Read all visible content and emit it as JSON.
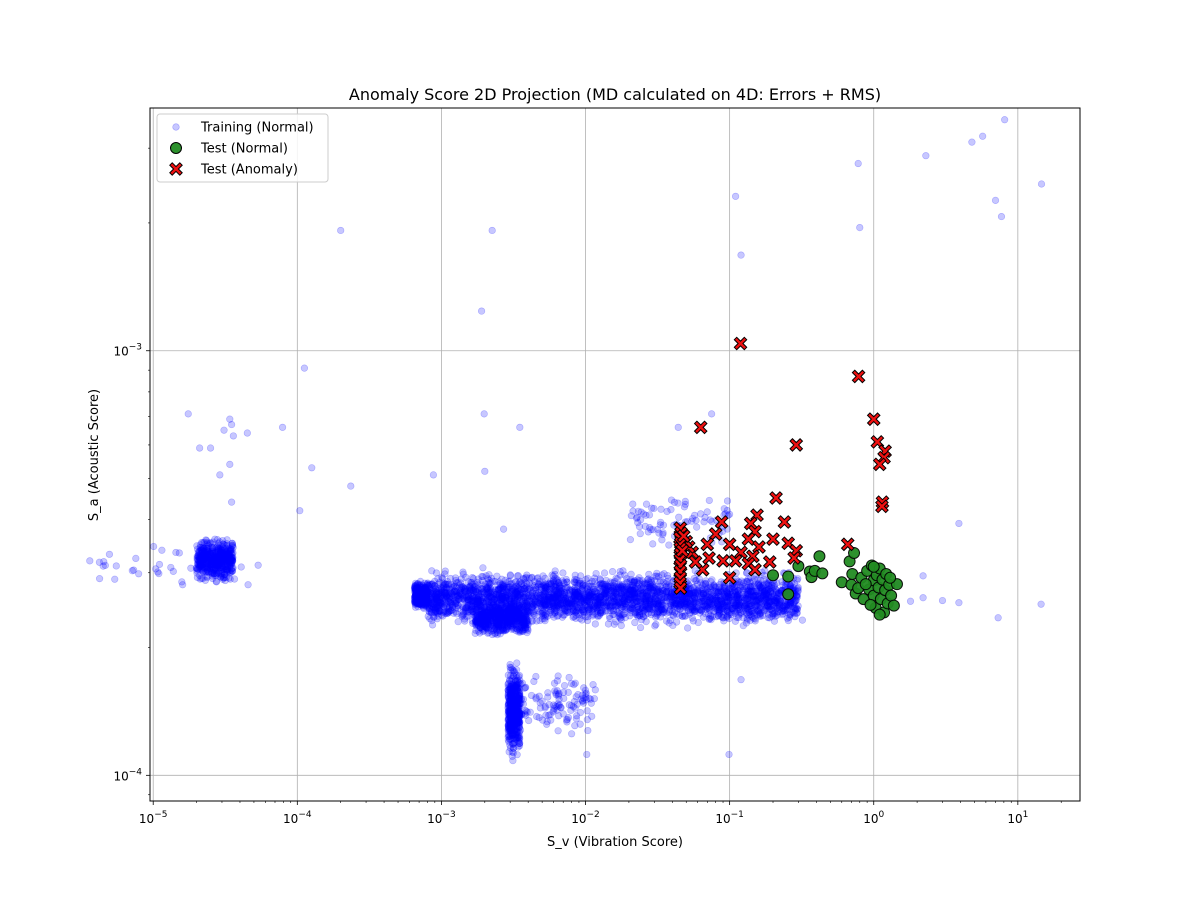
{
  "chart_data": {
    "type": "scatter",
    "title": "Anomaly Score 2D Projection (MD calculated on 4D: Errors + RMS)",
    "xlabel": "S_v (Vibration Score)",
    "ylabel": "S_a (Acoustic Score)",
    "xscale": "log",
    "yscale": "log",
    "xlim": [
      9.5e-06,
      27
    ],
    "ylim": [
      8.7e-05,
      0.00373
    ],
    "grid": true,
    "legend_placement": "top-left",
    "x_ticks": [
      {
        "value": 1e-05,
        "base": "10",
        "exp": "−5"
      },
      {
        "value": 0.0001,
        "base": "10",
        "exp": "−4"
      },
      {
        "value": 0.001,
        "base": "10",
        "exp": "−3"
      },
      {
        "value": 0.01,
        "base": "10",
        "exp": "−2"
      },
      {
        "value": 0.1,
        "base": "10",
        "exp": "−1"
      },
      {
        "value": 1,
        "base": "10",
        "exp": "0"
      },
      {
        "value": 10,
        "base": "10",
        "exp": "1"
      }
    ],
    "y_ticks": [
      {
        "value": 0.0001,
        "base": "10",
        "exp": "−4"
      },
      {
        "value": 0.001,
        "base": "10",
        "exp": "−3"
      }
    ],
    "series": [
      {
        "name": "Training (Normal)",
        "marker": "circle",
        "color": "#0000ff",
        "opacity": 0.22,
        "clusters": [
          {
            "x_range": [
              2e-05,
              3.6e-05
            ],
            "y_range": [
              0.00028,
              0.00037
            ],
            "count": 500
          },
          {
            "x_range": [
              3.6e-06,
              6e-05
            ],
            "y_range": [
              0.00027,
              0.00036
            ],
            "count": 40
          },
          {
            "x_range": [
              0.00065,
              0.0008
            ],
            "y_range": [
              0.00024,
              0.00029
            ],
            "count": 300
          },
          {
            "x_range": [
              0.0008,
              0.3
            ],
            "y_range": [
              0.00022,
              0.00031
            ],
            "count": 3000
          },
          {
            "x_range": [
              0.0017,
              0.004
            ],
            "y_range": [
              0.00021,
              0.00026
            ],
            "count": 500
          },
          {
            "x_range": [
              0.0029,
              0.0035
            ],
            "y_range": [
              0.000105,
              0.00019
            ],
            "count": 500
          },
          {
            "x_range": [
              0.0035,
              0.012
            ],
            "y_range": [
              0.00012,
              0.00018
            ],
            "count": 120
          },
          {
            "x_range": [
              0.02,
              0.1
            ],
            "y_range": [
              0.00033,
              0.00048
            ],
            "count": 80
          }
        ],
        "points": [
          {
            "x": 1.75e-05,
            "y": 0.00071
          },
          {
            "x": 2.1e-05,
            "y": 0.00059
          },
          {
            "x": 2.5e-05,
            "y": 0.00059
          },
          {
            "x": 2.9e-05,
            "y": 0.00051
          },
          {
            "x": 3.1e-05,
            "y": 0.00065
          },
          {
            "x": 3.4e-05,
            "y": 0.00069
          },
          {
            "x": 3.5e-05,
            "y": 0.00067
          },
          {
            "x": 3.6e-05,
            "y": 0.00063
          },
          {
            "x": 4.5e-05,
            "y": 0.00064
          },
          {
            "x": 3.4e-05,
            "y": 0.00054
          },
          {
            "x": 3.5e-05,
            "y": 0.00044
          },
          {
            "x": 7.9e-05,
            "y": 0.00066
          },
          {
            "x": 0.000104,
            "y": 0.00042
          },
          {
            "x": 0.000112,
            "y": 0.00091
          },
          {
            "x": 0.000126,
            "y": 0.00053
          },
          {
            "x": 0.0002,
            "y": 0.00192
          },
          {
            "x": 0.000235,
            "y": 0.00048
          },
          {
            "x": 0.00088,
            "y": 0.00051
          },
          {
            "x": 0.0019,
            "y": 0.00124
          },
          {
            "x": 0.00198,
            "y": 0.00071
          },
          {
            "x": 0.002,
            "y": 0.00052
          },
          {
            "x": 0.00225,
            "y": 0.00192
          },
          {
            "x": 0.0035,
            "y": 0.00066
          },
          {
            "x": 0.0027,
            "y": 0.00038
          },
          {
            "x": 0.0102,
            "y": 0.000112
          },
          {
            "x": 0.12,
            "y": 0.000168
          },
          {
            "x": 0.099,
            "y": 0.000112
          },
          {
            "x": 0.11,
            "y": 0.00231
          },
          {
            "x": 0.12,
            "y": 0.00168
          },
          {
            "x": 0.044,
            "y": 0.00066
          },
          {
            "x": 0.075,
            "y": 0.00071
          },
          {
            "x": 0.78,
            "y": 0.00276
          },
          {
            "x": 0.8,
            "y": 0.00195
          },
          {
            "x": 2.3,
            "y": 0.00288
          },
          {
            "x": 4.8,
            "y": 0.0031
          },
          {
            "x": 5.7,
            "y": 0.0032
          },
          {
            "x": 8.1,
            "y": 0.0035
          },
          {
            "x": 7.0,
            "y": 0.00226
          },
          {
            "x": 7.7,
            "y": 0.00207
          },
          {
            "x": 14.6,
            "y": 0.00247
          },
          {
            "x": 14.5,
            "y": 0.000253
          },
          {
            "x": 7.3,
            "y": 0.000235
          },
          {
            "x": 3.9,
            "y": 0.000255
          },
          {
            "x": 3.0,
            "y": 0.000258
          },
          {
            "x": 3.9,
            "y": 0.000392
          },
          {
            "x": 2.2,
            "y": 0.000295
          },
          {
            "x": 1.8,
            "y": 0.000257
          },
          {
            "x": 0.32,
            "y": 0.000232
          },
          {
            "x": 1.45,
            "y": 0.000281
          },
          {
            "x": 2.2,
            "y": 0.000262
          }
        ]
      },
      {
        "name": "Test (Normal)",
        "marker": "circle",
        "color": "#228b22",
        "opacity": 0.95,
        "points": [
          {
            "x": 0.2,
            "y": 0.000296
          },
          {
            "x": 0.255,
            "y": 0.000294
          },
          {
            "x": 0.255,
            "y": 0.000267
          },
          {
            "x": 0.3,
            "y": 0.000311
          },
          {
            "x": 0.36,
            "y": 0.000302
          },
          {
            "x": 0.37,
            "y": 0.000293
          },
          {
            "x": 0.39,
            "y": 0.000303
          },
          {
            "x": 0.42,
            "y": 0.000328
          },
          {
            "x": 0.44,
            "y": 0.000299
          },
          {
            "x": 0.6,
            "y": 0.000285
          },
          {
            "x": 0.68,
            "y": 0.000319
          },
          {
            "x": 0.7,
            "y": 0.000281
          },
          {
            "x": 0.71,
            "y": 0.000298
          },
          {
            "x": 0.73,
            "y": 0.000334
          },
          {
            "x": 0.75,
            "y": 0.000268
          },
          {
            "x": 0.78,
            "y": 0.000276
          },
          {
            "x": 0.82,
            "y": 0.000292
          },
          {
            "x": 0.85,
            "y": 0.00026
          },
          {
            "x": 0.9,
            "y": 0.000303
          },
          {
            "x": 0.93,
            "y": 0.000274
          },
          {
            "x": 0.97,
            "y": 0.000312
          },
          {
            "x": 1.0,
            "y": 0.000288
          },
          {
            "x": 1.0,
            "y": 0.000265
          },
          {
            "x": 1.03,
            "y": 0.000248
          },
          {
            "x": 1.05,
            "y": 0.000296
          },
          {
            "x": 1.08,
            "y": 0.000277
          },
          {
            "x": 1.1,
            "y": 0.000307
          },
          {
            "x": 1.12,
            "y": 0.00026
          },
          {
            "x": 1.15,
            "y": 0.000289
          },
          {
            "x": 1.18,
            "y": 0.000242
          },
          {
            "x": 1.2,
            "y": 0.000273
          },
          {
            "x": 1.22,
            "y": 0.000298
          },
          {
            "x": 1.25,
            "y": 0.000254
          },
          {
            "x": 1.28,
            "y": 0.000281
          },
          {
            "x": 1.32,
            "y": 0.000265
          },
          {
            "x": 1.38,
            "y": 0.000251
          },
          {
            "x": 1.45,
            "y": 0.000282
          },
          {
            "x": 0.95,
            "y": 0.000252
          },
          {
            "x": 1.1,
            "y": 0.000239
          },
          {
            "x": 0.88,
            "y": 0.000282
          },
          {
            "x": 1.0,
            "y": 0.00031
          },
          {
            "x": 1.3,
            "y": 0.000292
          }
        ]
      },
      {
        "name": "Test (Anomaly)",
        "marker": "x-filled",
        "color": "#ee1111",
        "opacity": 1,
        "points": [
          {
            "x": 0.119,
            "y": 0.00104
          },
          {
            "x": 0.785,
            "y": 0.00087
          },
          {
            "x": 0.063,
            "y": 0.00066
          },
          {
            "x": 0.29,
            "y": 0.0006
          },
          {
            "x": 1.0,
            "y": 0.00069
          },
          {
            "x": 1.06,
            "y": 0.00061
          },
          {
            "x": 1.2,
            "y": 0.00058
          },
          {
            "x": 1.18,
            "y": 0.00056
          },
          {
            "x": 1.1,
            "y": 0.00054
          },
          {
            "x": 1.15,
            "y": 0.00044
          },
          {
            "x": 1.14,
            "y": 0.00043
          },
          {
            "x": 0.21,
            "y": 0.00045
          },
          {
            "x": 0.155,
            "y": 0.00041
          },
          {
            "x": 0.24,
            "y": 0.000395
          },
          {
            "x": 0.14,
            "y": 0.000392
          },
          {
            "x": 0.088,
            "y": 0.000395
          },
          {
            "x": 0.15,
            "y": 0.000375
          },
          {
            "x": 0.135,
            "y": 0.00036
          },
          {
            "x": 0.08,
            "y": 0.00037
          },
          {
            "x": 0.2,
            "y": 0.00036
          },
          {
            "x": 0.255,
            "y": 0.000352
          },
          {
            "x": 0.29,
            "y": 0.000338
          },
          {
            "x": 0.28,
            "y": 0.000325
          },
          {
            "x": 0.16,
            "y": 0.000345
          },
          {
            "x": 0.07,
            "y": 0.00035
          },
          {
            "x": 0.1,
            "y": 0.00035
          },
          {
            "x": 0.66,
            "y": 0.00035
          },
          {
            "x": 0.12,
            "y": 0.000335
          },
          {
            "x": 0.145,
            "y": 0.000328
          },
          {
            "x": 0.11,
            "y": 0.00032
          },
          {
            "x": 0.19,
            "y": 0.000318
          },
          {
            "x": 0.135,
            "y": 0.000315
          },
          {
            "x": 0.15,
            "y": 0.000305
          },
          {
            "x": 0.1,
            "y": 0.000292
          },
          {
            "x": 0.09,
            "y": 0.00032
          },
          {
            "x": 0.072,
            "y": 0.000325
          },
          {
            "x": 0.065,
            "y": 0.000305
          },
          {
            "x": 0.058,
            "y": 0.000318
          },
          {
            "x": 0.055,
            "y": 0.000335
          },
          {
            "x": 0.052,
            "y": 0.000345
          },
          {
            "x": 0.05,
            "y": 0.000355
          },
          {
            "x": 0.0455,
            "y": 0.000382
          },
          {
            "x": 0.046,
            "y": 0.000372
          },
          {
            "x": 0.0452,
            "y": 0.000362
          },
          {
            "x": 0.0458,
            "y": 0.000352
          },
          {
            "x": 0.0454,
            "y": 0.000342
          },
          {
            "x": 0.0456,
            "y": 0.000332
          },
          {
            "x": 0.0453,
            "y": 0.000322
          },
          {
            "x": 0.0457,
            "y": 0.000312
          },
          {
            "x": 0.0454,
            "y": 0.000302
          },
          {
            "x": 0.0455,
            "y": 0.000292
          },
          {
            "x": 0.0453,
            "y": 0.000284
          },
          {
            "x": 0.0456,
            "y": 0.000276
          },
          {
            "x": 0.048,
            "y": 0.000366
          },
          {
            "x": 0.047,
            "y": 0.000338
          }
        ]
      }
    ]
  }
}
